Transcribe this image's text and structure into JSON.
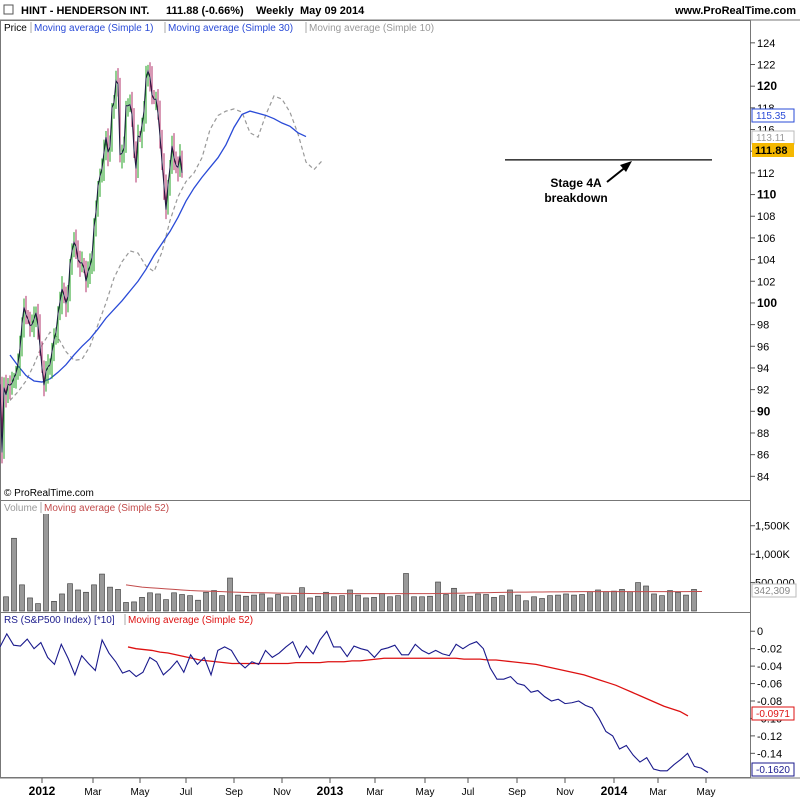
{
  "header": {
    "symbol": "HINT - HENDERSON INT.",
    "quote": "111.88 (-0.66%)",
    "period": "Weekly",
    "date": "May 09 2014",
    "website": "www.ProRealTime.com"
  },
  "copyright": "© ProRealTime.com",
  "annotation": {
    "line1": "Stage 4A",
    "line2": "breakdown"
  },
  "colors": {
    "ma30": "#2a4bd7",
    "ma10": "#999999",
    "up_candle": "#22a022",
    "down_candle": "#b0306a",
    "rs_line": "#1a1a8c",
    "rs_ma": "#dd1111",
    "volume_bar": "#999999",
    "volume_ma": "#c24b4b",
    "last_price_badge": "#f5b800"
  },
  "chart_data": [
    {
      "type": "line",
      "title": "Price",
      "legend": [
        "Price",
        "Moving average (Simple 1)",
        "Moving average (Simple 30)",
        "Moving average (Simple 10)"
      ],
      "ylim": [
        82,
        125
      ],
      "y_ticks": [
        84,
        86,
        88,
        90,
        92,
        94,
        96,
        98,
        100,
        102,
        104,
        106,
        108,
        110,
        112,
        114,
        116,
        118,
        120,
        122,
        124
      ],
      "y_ticks_bold": [
        90,
        100,
        110,
        120
      ],
      "x_ticks": [
        "2012",
        "Mar",
        "May",
        "Jul",
        "Sep",
        "Nov",
        "2013",
        "Mar",
        "May",
        "Jul",
        "Sep",
        "Nov",
        "2014",
        "Mar",
        "May"
      ],
      "x_ticks_bold": [
        "2012",
        "2013",
        "2014"
      ],
      "last_values": {
        "ma30": "115.35",
        "ma10": "113.11",
        "price": "111.88"
      },
      "support_level": 113.2,
      "series": [
        {
          "name": "Moving average (Simple 1)",
          "step": 2,
          "x0": 0,
          "values": [
            92.5,
            86.2,
            92.2,
            91.5,
            92.5,
            92.4,
            92.6,
            93.1,
            93.5,
            94.4,
            95.8,
            98.1,
            99.6,
            98.9,
            98.5,
            97.9,
            98.0,
            98.5,
            99.1,
            97.9,
            96.0,
            94.0,
            92.4,
            93.7,
            94.1,
            94.3,
            95.5,
            96.6,
            97.3,
            99.0,
            100.1,
            101.3,
            100.7,
            100.0,
            100.6,
            103.6,
            104.8,
            105.6,
            105.2,
            104.0,
            103.7,
            103.7,
            103.2,
            102.0,
            102.9,
            103.4,
            104.2,
            107.0,
            108.4,
            110.8,
            111.7,
            112.4,
            113.9,
            115.3,
            113.9,
            114.4,
            118.0,
            118.5,
            120.5,
            120.2,
            113.7,
            113.8,
            114.3,
            118.2,
            118.2,
            118.3,
            117.4,
            114.1,
            112.4,
            115.4,
            115.3,
            116.4,
            117.7,
            120.7,
            121.4,
            120.8,
            119.2,
            118.8,
            118.8,
            117.5,
            115.4,
            113.0,
            110.8,
            108.6,
            110.9,
            112.5,
            114.5,
            113.4,
            112.7,
            112.5,
            113.6,
            112.0
          ]
        },
        {
          "name": "Moving average (Simple 30)",
          "step": 8,
          "x0": 10,
          "values": [
            95.2,
            94.2,
            93.3,
            92.8,
            92.7,
            93.0,
            93.6,
            94.3,
            95.2,
            96.0,
            96.7,
            97.6,
            98.6,
            99.4,
            100.2,
            101.1,
            102.0,
            103.1,
            104.4,
            105.5,
            106.6,
            107.9,
            109.4,
            110.6,
            111.6,
            112.5,
            113.4,
            114.6,
            116.2,
            117.4,
            117.7,
            117.5,
            117.3,
            117.0,
            116.6,
            116.3,
            115.7,
            115.35
          ]
        },
        {
          "name": "Moving average (Simple 10)",
          "step": 8,
          "x0": 10,
          "values": [
            91.0,
            91.8,
            92.8,
            94.3,
            96.1,
            97.3,
            96.8,
            95.5,
            94.7,
            94.8,
            96.0,
            98.0,
            100.0,
            102.3,
            103.8,
            104.8,
            104.6,
            103.4,
            102.9,
            104.7,
            107.6,
            109.8,
            111.2,
            112.0,
            113.4,
            116.0,
            117.3,
            117.7,
            117.9,
            117.6,
            115.7,
            115.3,
            117.4,
            119.1,
            118.8,
            117.6,
            115.6,
            113.0,
            112.3,
            113.11
          ]
        }
      ]
    },
    {
      "type": "bar",
      "title": "Volume",
      "legend": [
        "Volume",
        "Moving average (Simple 52)"
      ],
      "ylim": [
        0,
        1900000
      ],
      "y_ticks": [
        {
          "value": 500000,
          "label": "500,000"
        },
        {
          "value": 1000000,
          "label": "1,000K"
        },
        {
          "value": 1500000,
          "label": "1,500K"
        }
      ],
      "last_value": "342,309",
      "series": [
        {
          "name": "Volume",
          "step": 8,
          "x0": 6,
          "values": [
            250000,
            1280000,
            460000,
            230000,
            130000,
            1880000,
            170000,
            300000,
            480000,
            370000,
            330000,
            460000,
            650000,
            420000,
            380000,
            150000,
            160000,
            240000,
            320000,
            300000,
            200000,
            320000,
            290000,
            270000,
            190000,
            330000,
            360000,
            270000,
            580000,
            280000,
            260000,
            280000,
            300000,
            230000,
            290000,
            250000,
            270000,
            410000,
            230000,
            260000,
            330000,
            250000,
            270000,
            370000,
            280000,
            230000,
            240000,
            310000,
            250000,
            270000,
            660000,
            250000,
            250000,
            260000,
            510000,
            290000,
            400000,
            280000,
            260000,
            300000,
            290000,
            240000,
            270000,
            370000,
            280000,
            180000,
            250000,
            220000,
            270000,
            280000,
            300000,
            280000,
            290000,
            340000,
            370000,
            340000,
            350000,
            380000,
            340000,
            500000,
            440000,
            300000,
            270000,
            360000,
            330000,
            280000,
            380000
          ]
        },
        {
          "name": "Moving average (Simple 52)",
          "step": 8,
          "x0": 126,
          "values": [
            460000,
            440000,
            420000,
            410000,
            400000,
            390000,
            380000,
            370000,
            360000,
            355000,
            350000,
            345000,
            340000,
            335000,
            330000,
            325000,
            320000,
            320000,
            318000,
            315000,
            312000,
            310000,
            310000,
            308000,
            305000,
            305000,
            305000,
            305000,
            305000,
            305000,
            305000,
            305000,
            305000,
            305000,
            305000,
            305000,
            305000,
            305000,
            305000,
            308000,
            310000,
            312000,
            315000,
            318000,
            320000,
            322000,
            325000,
            328000,
            330000,
            332000,
            333000,
            334000,
            335000,
            336000,
            337000,
            338000,
            339000,
            340000,
            340000,
            340000,
            340000,
            340000,
            340000,
            340000,
            340000,
            340000,
            340000,
            340000,
            340000,
            340000,
            340000,
            342000,
            342309
          ]
        }
      ]
    },
    {
      "type": "line",
      "title": "RS (S&P500 Index) [*10]",
      "legend": [
        "RS (S&P500 Index) [*10]",
        "Moving average (Simple 52)"
      ],
      "ylim": [
        -0.166,
        0.006
      ],
      "y_ticks": [
        {
          "value": 0,
          "label": "0"
        },
        {
          "value": -0.02,
          "label": "-0.02"
        },
        {
          "value": -0.04,
          "label": "-0.04"
        },
        {
          "value": -0.06,
          "label": "-0.06"
        },
        {
          "value": -0.08,
          "label": "-0.08"
        },
        {
          "value": -0.1,
          "label": "-0.10"
        },
        {
          "value": -0.12,
          "label": "-0.12"
        },
        {
          "value": -0.14,
          "label": "-0.14"
        }
      ],
      "last_values": {
        "rs_ma": "-0.0971",
        "rs": "-0.1620"
      },
      "series": [
        {
          "name": "RS (S&P500 Index) [*10]",
          "step": 8,
          "x0": 0,
          "values": [
            -0.018,
            -0.003,
            -0.016,
            -0.017,
            -0.009,
            -0.02,
            -0.013,
            -0.03,
            -0.038,
            -0.015,
            -0.031,
            -0.05,
            -0.028,
            -0.037,
            -0.045,
            -0.01,
            -0.025,
            -0.035,
            -0.048,
            -0.045,
            -0.052,
            -0.047,
            -0.03,
            -0.035,
            -0.05,
            -0.043,
            -0.034,
            -0.047,
            -0.027,
            -0.038,
            -0.03,
            -0.05,
            -0.022,
            -0.018,
            -0.022,
            -0.035,
            -0.042,
            -0.035,
            -0.038,
            -0.022,
            -0.03,
            -0.025,
            -0.018,
            -0.012,
            -0.03,
            -0.017,
            -0.026,
            -0.01,
            0.0,
            -0.018,
            -0.018,
            -0.029,
            -0.017,
            -0.02,
            -0.022,
            -0.03,
            -0.021,
            -0.019,
            -0.016,
            -0.027,
            -0.027,
            -0.015,
            -0.022,
            -0.026,
            -0.022,
            -0.026,
            -0.028,
            -0.015,
            -0.02,
            -0.015,
            -0.012,
            -0.02,
            -0.042,
            -0.055,
            -0.055,
            -0.052,
            -0.06,
            -0.062,
            -0.07,
            -0.068,
            -0.075,
            -0.08,
            -0.078,
            -0.083,
            -0.082,
            -0.08,
            -0.085,
            -0.088,
            -0.1,
            -0.115,
            -0.12,
            -0.135,
            -0.131,
            -0.142,
            -0.15,
            -0.145,
            -0.158,
            -0.16,
            -0.16,
            -0.153,
            -0.147,
            -0.14,
            -0.155,
            -0.157,
            -0.162
          ]
        },
        {
          "name": "Moving average (Simple 52)",
          "step": 8,
          "x0": 128,
          "values": [
            -0.018,
            -0.02,
            -0.021,
            -0.022,
            -0.024,
            -0.025,
            -0.027,
            -0.029,
            -0.031,
            -0.033,
            -0.034,
            -0.035,
            -0.036,
            -0.037,
            -0.037,
            -0.037,
            -0.037,
            -0.037,
            -0.037,
            -0.037,
            -0.037,
            -0.036,
            -0.036,
            -0.036,
            -0.036,
            -0.035,
            -0.035,
            -0.035,
            -0.034,
            -0.034,
            -0.033,
            -0.032,
            -0.031,
            -0.031,
            -0.031,
            -0.031,
            -0.031,
            -0.031,
            -0.031,
            -0.031,
            -0.031,
            -0.031,
            -0.032,
            -0.032,
            -0.032,
            -0.033,
            -0.033,
            -0.034,
            -0.035,
            -0.036,
            -0.037,
            -0.038,
            -0.04,
            -0.042,
            -0.044,
            -0.046,
            -0.048,
            -0.05,
            -0.053,
            -0.056,
            -0.059,
            -0.062,
            -0.066,
            -0.07,
            -0.074,
            -0.078,
            -0.082,
            -0.086,
            -0.089,
            -0.092,
            -0.0971
          ]
        }
      ]
    }
  ]
}
